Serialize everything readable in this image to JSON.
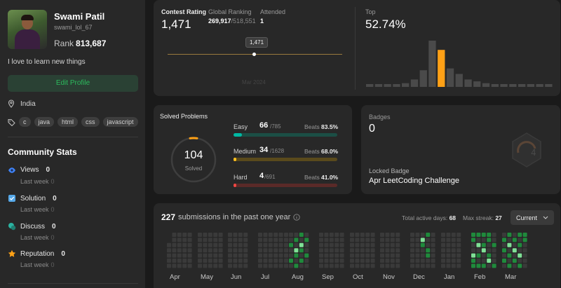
{
  "profile": {
    "name": "Swami Patil",
    "username": "swami_lol_67",
    "rank_label": "Rank",
    "rank_value": "813,687",
    "bio": "I love to learn new things",
    "edit_button": "Edit Profile",
    "location": "India",
    "skills": [
      "c",
      "java",
      "html",
      "css",
      "javascript"
    ]
  },
  "community": {
    "title": "Community Stats",
    "stats": [
      {
        "label": "Views",
        "value": "0",
        "sub": "Last week",
        "sub_value": "0",
        "icon": "eye-icon",
        "color": "#3f83f8"
      },
      {
        "label": "Solution",
        "value": "0",
        "sub": "Last week",
        "sub_value": "0",
        "icon": "checkbox-icon",
        "color": "#56a8e8"
      },
      {
        "label": "Discuss",
        "value": "0",
        "sub": "Last week",
        "sub_value": "0",
        "icon": "chat-icon",
        "color": "#2bb3a1"
      },
      {
        "label": "Reputation",
        "value": "0",
        "sub": "Last week",
        "sub_value": "0",
        "icon": "star-icon",
        "color": "#ffa116"
      }
    ]
  },
  "contest": {
    "rating_label": "Contest Rating",
    "rating": "1,471",
    "global_label": "Global Ranking",
    "global_value": "269,917",
    "global_total": "/518,551",
    "attended_label": "Attended",
    "attended_value": "1",
    "tooltip": "1,471",
    "month_label": "Mar 2024",
    "top_label": "Top",
    "top_value": "52.74%",
    "histogram": [
      1,
      1,
      1,
      1,
      2,
      4,
      9,
      25,
      20,
      10,
      7,
      4,
      3,
      2,
      1,
      1,
      1,
      1,
      1,
      1,
      1
    ],
    "histogram_highlight": 8
  },
  "solved": {
    "title": "Solved Problems",
    "total": "104",
    "total_label": "Solved",
    "rows": [
      {
        "name": "Easy",
        "count": "66",
        "total": "/785",
        "beats_label": "Beats",
        "beats": "83.5%",
        "fraction": 0.084,
        "color": "#00b8a3",
        "track": "#1b4e45"
      },
      {
        "name": "Medium",
        "count": "34",
        "total": "/1628",
        "beats_label": "Beats",
        "beats": "68.0%",
        "fraction": 0.021,
        "color": "#ffc01e",
        "track": "#5a4a1c"
      },
      {
        "name": "Hard",
        "count": "4",
        "total": "/691",
        "beats_label": "Beats",
        "beats": "41.0%",
        "fraction": 0.006,
        "color": "#ef4743",
        "track": "#5a2a28"
      }
    ]
  },
  "badges": {
    "title": "Badges",
    "count": "0",
    "locked_label": "Locked Badge",
    "locked_name": "Apr LeetCoding Challenge"
  },
  "submissions": {
    "count": "227",
    "text": "submissions in the past one year",
    "active_label": "Total active days:",
    "active_value": "68",
    "streak_label": "Max streak:",
    "streak_value": "27",
    "dropdown": "Current",
    "months": [
      "Apr",
      "May",
      "Jun",
      "Jul",
      "Aug",
      "Sep",
      "Oct",
      "Nov",
      "Dec",
      "Jan",
      "Feb",
      "Mar"
    ]
  }
}
